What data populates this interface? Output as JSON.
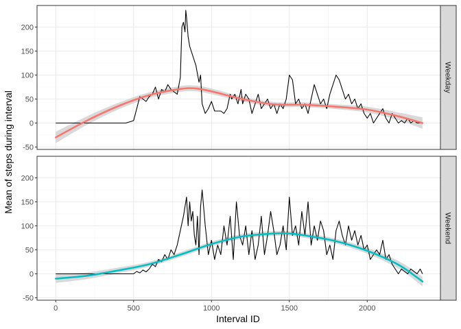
{
  "chart_data": {
    "type": "line",
    "xlabel": "Interval ID",
    "ylabel": "Mean of steps during interval",
    "xlim": [
      -120,
      2470
    ],
    "ylim": [
      -55,
      245
    ],
    "xticks": [
      "0",
      "500",
      "1000",
      "1500",
      "2000"
    ],
    "xtick_values": [
      0,
      500,
      1000,
      1500,
      2000
    ],
    "yticks": [
      "-50",
      "0",
      "50",
      "100",
      "150",
      "200"
    ],
    "ytick_values": [
      -50,
      0,
      50,
      100,
      150,
      200
    ],
    "grid": true,
    "colors": {
      "weekday": "#F8766D",
      "weekend": "#00BFC4",
      "line": "#000000",
      "band": "#cccccc",
      "strip": "#d9d9d9"
    },
    "panels": [
      {
        "strip_label": "Weekday",
        "raw": {
          "x": [
            0,
            100,
            200,
            300,
            400,
            450,
            500,
            520,
            540,
            560,
            580,
            600,
            620,
            640,
            660,
            680,
            700,
            720,
            740,
            760,
            780,
            800,
            810,
            820,
            830,
            835,
            840,
            850,
            860,
            870,
            880,
            900,
            920,
            930,
            940,
            960,
            980,
            1000,
            1020,
            1040,
            1060,
            1080,
            1100,
            1120,
            1130,
            1150,
            1170,
            1190,
            1200,
            1220,
            1240,
            1260,
            1280,
            1300,
            1320,
            1340,
            1360,
            1380,
            1400,
            1420,
            1440,
            1460,
            1480,
            1500,
            1520,
            1540,
            1560,
            1580,
            1600,
            1620,
            1640,
            1660,
            1680,
            1700,
            1720,
            1740,
            1760,
            1780,
            1800,
            1820,
            1840,
            1860,
            1880,
            1900,
            1920,
            1940,
            1960,
            1980,
            2000,
            2020,
            2040,
            2060,
            2080,
            2100,
            2120,
            2140,
            2160,
            2180,
            2200,
            2220,
            2240,
            2260,
            2280,
            2300,
            2320,
            2340,
            2355
          ],
          "y": [
            0,
            0,
            0,
            0,
            0,
            0,
            5,
            30,
            55,
            50,
            45,
            55,
            60,
            75,
            50,
            70,
            65,
            80,
            70,
            65,
            60,
            95,
            200,
            210,
            190,
            235,
            220,
            180,
            160,
            150,
            140,
            120,
            85,
            100,
            40,
            20,
            30,
            45,
            25,
            25,
            25,
            20,
            30,
            60,
            50,
            60,
            40,
            70,
            40,
            60,
            50,
            20,
            40,
            60,
            30,
            40,
            50,
            30,
            40,
            20,
            40,
            30,
            50,
            100,
            90,
            40,
            50,
            30,
            40,
            20,
            50,
            80,
            60,
            40,
            50,
            30,
            60,
            80,
            100,
            90,
            70,
            50,
            60,
            40,
            50,
            30,
            40,
            20,
            10,
            20,
            0,
            10,
            20,
            30,
            10,
            0,
            20,
            10,
            0,
            5,
            0,
            10,
            0,
            5,
            0,
            0,
            0
          ]
        },
        "smooth": {
          "x": [
            0,
            200,
            400,
            600,
            800,
            900,
            1000,
            1200,
            1400,
            1600,
            1800,
            2000,
            2200,
            2355
          ],
          "y": [
            -30,
            5,
            35,
            58,
            71,
            72,
            66,
            50,
            39,
            38,
            34,
            28,
            14,
            0
          ],
          "se": [
            12,
            9,
            7,
            6,
            6,
            6,
            6,
            5,
            5,
            5,
            5,
            6,
            8,
            12
          ]
        }
      },
      {
        "strip_label": "Weekend",
        "raw": {
          "x": [
            0,
            100,
            200,
            300,
            400,
            450,
            500,
            520,
            540,
            560,
            580,
            600,
            620,
            640,
            660,
            680,
            700,
            720,
            740,
            760,
            780,
            800,
            820,
            840,
            850,
            860,
            870,
            880,
            890,
            900,
            910,
            920,
            930,
            940,
            960,
            980,
            1000,
            1020,
            1040,
            1060,
            1080,
            1100,
            1120,
            1140,
            1160,
            1180,
            1200,
            1220,
            1240,
            1260,
            1280,
            1300,
            1320,
            1340,
            1360,
            1380,
            1400,
            1420,
            1440,
            1460,
            1480,
            1500,
            1520,
            1540,
            1560,
            1580,
            1600,
            1620,
            1640,
            1660,
            1680,
            1700,
            1720,
            1740,
            1760,
            1780,
            1800,
            1820,
            1840,
            1860,
            1880,
            1900,
            1920,
            1940,
            1960,
            1980,
            2000,
            2020,
            2040,
            2060,
            2080,
            2100,
            2120,
            2140,
            2160,
            2180,
            2200,
            2220,
            2240,
            2260,
            2280,
            2300,
            2320,
            2340,
            2355
          ],
          "y": [
            0,
            0,
            0,
            0,
            0,
            0,
            0,
            5,
            2,
            8,
            4,
            10,
            20,
            15,
            30,
            25,
            40,
            30,
            50,
            40,
            60,
            90,
            120,
            160,
            100,
            150,
            110,
            130,
            80,
            60,
            120,
            40,
            140,
            175,
            100,
            40,
            70,
            30,
            60,
            40,
            100,
            60,
            120,
            30,
            150,
            80,
            60,
            100,
            40,
            90,
            30,
            60,
            120,
            40,
            80,
            130,
            90,
            40,
            60,
            100,
            50,
            160,
            80,
            100,
            60,
            130,
            80,
            150,
            60,
            100,
            70,
            110,
            90,
            40,
            60,
            30,
            90,
            110,
            80,
            60,
            100,
            70,
            90,
            60,
            80,
            50,
            60,
            30,
            40,
            50,
            40,
            70,
            30,
            40,
            20,
            10,
            0,
            10,
            5,
            0,
            10,
            5,
            0,
            10,
            0
          ]
        },
        "smooth": {
          "x": [
            0,
            200,
            400,
            600,
            800,
            1000,
            1200,
            1400,
            1500,
            1600,
            1800,
            2000,
            2200,
            2355
          ],
          "y": [
            -10,
            -4,
            7,
            20,
            40,
            62,
            78,
            84,
            84,
            80,
            68,
            48,
            19,
            -16
          ],
          "se": [
            9,
            7,
            6,
            5,
            5,
            5,
            5,
            5,
            5,
            5,
            5,
            6,
            8,
            10
          ]
        }
      }
    ]
  }
}
